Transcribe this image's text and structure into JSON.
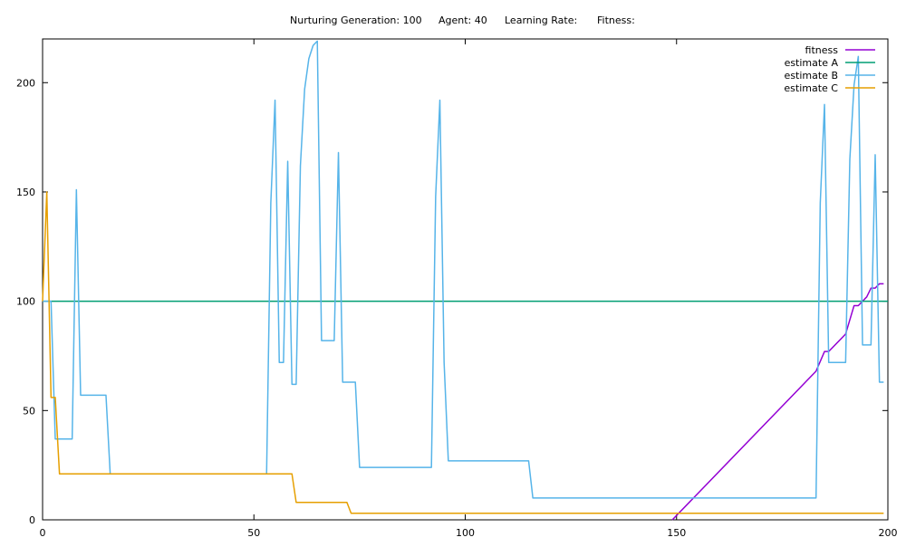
{
  "header": {
    "generation_label": "Nurturing Generation: 100",
    "agent_label": "Agent: 40",
    "learning_rate_label": "Learning Rate:",
    "fitness_label": "Fitness:"
  },
  "chart_data": {
    "type": "line",
    "title": "",
    "xlabel": "",
    "ylabel": "",
    "xlim": [
      0,
      200
    ],
    "ylim": [
      0,
      220
    ],
    "x_ticks": [
      0,
      50,
      100,
      150,
      200
    ],
    "y_ticks": [
      0,
      50,
      100,
      150,
      200
    ],
    "grid": false,
    "legend_position": "top-right",
    "series": [
      {
        "name": "fitness",
        "color": "#9400d3",
        "points": [
          [
            149,
            0
          ],
          [
            183,
            68
          ],
          [
            185,
            77
          ],
          [
            186,
            77
          ],
          [
            190,
            85
          ],
          [
            192,
            98
          ],
          [
            193,
            98
          ],
          [
            195,
            102
          ],
          [
            196,
            106
          ],
          [
            197,
            106
          ],
          [
            198,
            108
          ],
          [
            199,
            108
          ]
        ]
      },
      {
        "name": "estimate A",
        "color": "#009e73",
        "points": [
          [
            0,
            100
          ],
          [
            200,
            100
          ]
        ]
      },
      {
        "name": "estimate B",
        "color": "#56b4e9",
        "points": [
          [
            0,
            100
          ],
          [
            2,
            100
          ],
          [
            3,
            37
          ],
          [
            7,
            37
          ],
          [
            8,
            151
          ],
          [
            9,
            57
          ],
          [
            15,
            57
          ],
          [
            16,
            21
          ],
          [
            53,
            21
          ],
          [
            54,
            145
          ],
          [
            55,
            192
          ],
          [
            56,
            72
          ],
          [
            57,
            72
          ],
          [
            58,
            164
          ],
          [
            59,
            62
          ],
          [
            60,
            62
          ],
          [
            61,
            162
          ],
          [
            62,
            197
          ],
          [
            63,
            211
          ],
          [
            64,
            217
          ],
          [
            65,
            219
          ],
          [
            66,
            82
          ],
          [
            69,
            82
          ],
          [
            70,
            168
          ],
          [
            71,
            63
          ],
          [
            74,
            63
          ],
          [
            75,
            24
          ],
          [
            92,
            24
          ],
          [
            93,
            148
          ],
          [
            94,
            192
          ],
          [
            95,
            72
          ],
          [
            96,
            27
          ],
          [
            115,
            27
          ],
          [
            116,
            10
          ],
          [
            183,
            10
          ],
          [
            184,
            145
          ],
          [
            185,
            190
          ],
          [
            186,
            72
          ],
          [
            190,
            72
          ],
          [
            191,
            165
          ],
          [
            192,
            199
          ],
          [
            193,
            212
          ],
          [
            194,
            80
          ],
          [
            196,
            80
          ],
          [
            197,
            167
          ],
          [
            198,
            63
          ],
          [
            199,
            63
          ]
        ]
      },
      {
        "name": "estimate C",
        "color": "#e69f00",
        "points": [
          [
            0,
            100
          ],
          [
            1,
            150
          ],
          [
            2,
            56
          ],
          [
            3,
            56
          ],
          [
            4,
            21
          ],
          [
            59,
            21
          ],
          [
            60,
            8
          ],
          [
            72,
            8
          ],
          [
            73,
            3
          ],
          [
            199,
            3
          ]
        ]
      }
    ]
  }
}
